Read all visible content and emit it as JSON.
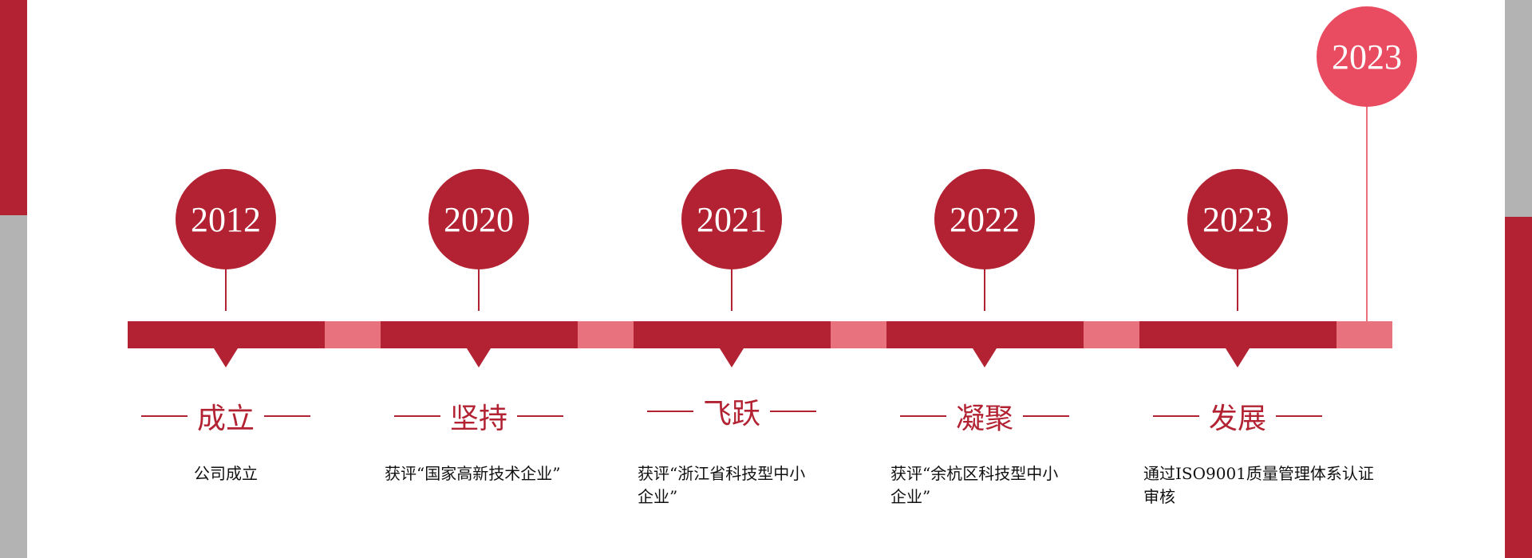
{
  "colors": {
    "primary": "#b22232",
    "accent": "#e8737e",
    "highlight": "#e94c60",
    "side_gray": "#b3b3b3"
  },
  "highlight_year": "2023",
  "milestones": [
    {
      "year": "2012",
      "title": "成立",
      "description": "公司成立"
    },
    {
      "year": "2020",
      "title": "坚持",
      "description": "获评“国家高新技术企业”"
    },
    {
      "year": "2021",
      "title": "飞跃",
      "description": "获评“浙江省科技型中小企业”"
    },
    {
      "year": "2022",
      "title": "凝聚",
      "description": "获评“余杭区科技型中小企业”"
    },
    {
      "year": "2023",
      "title": "发展",
      "description": "通过ISO9001质量管理体系认证审核"
    }
  ]
}
